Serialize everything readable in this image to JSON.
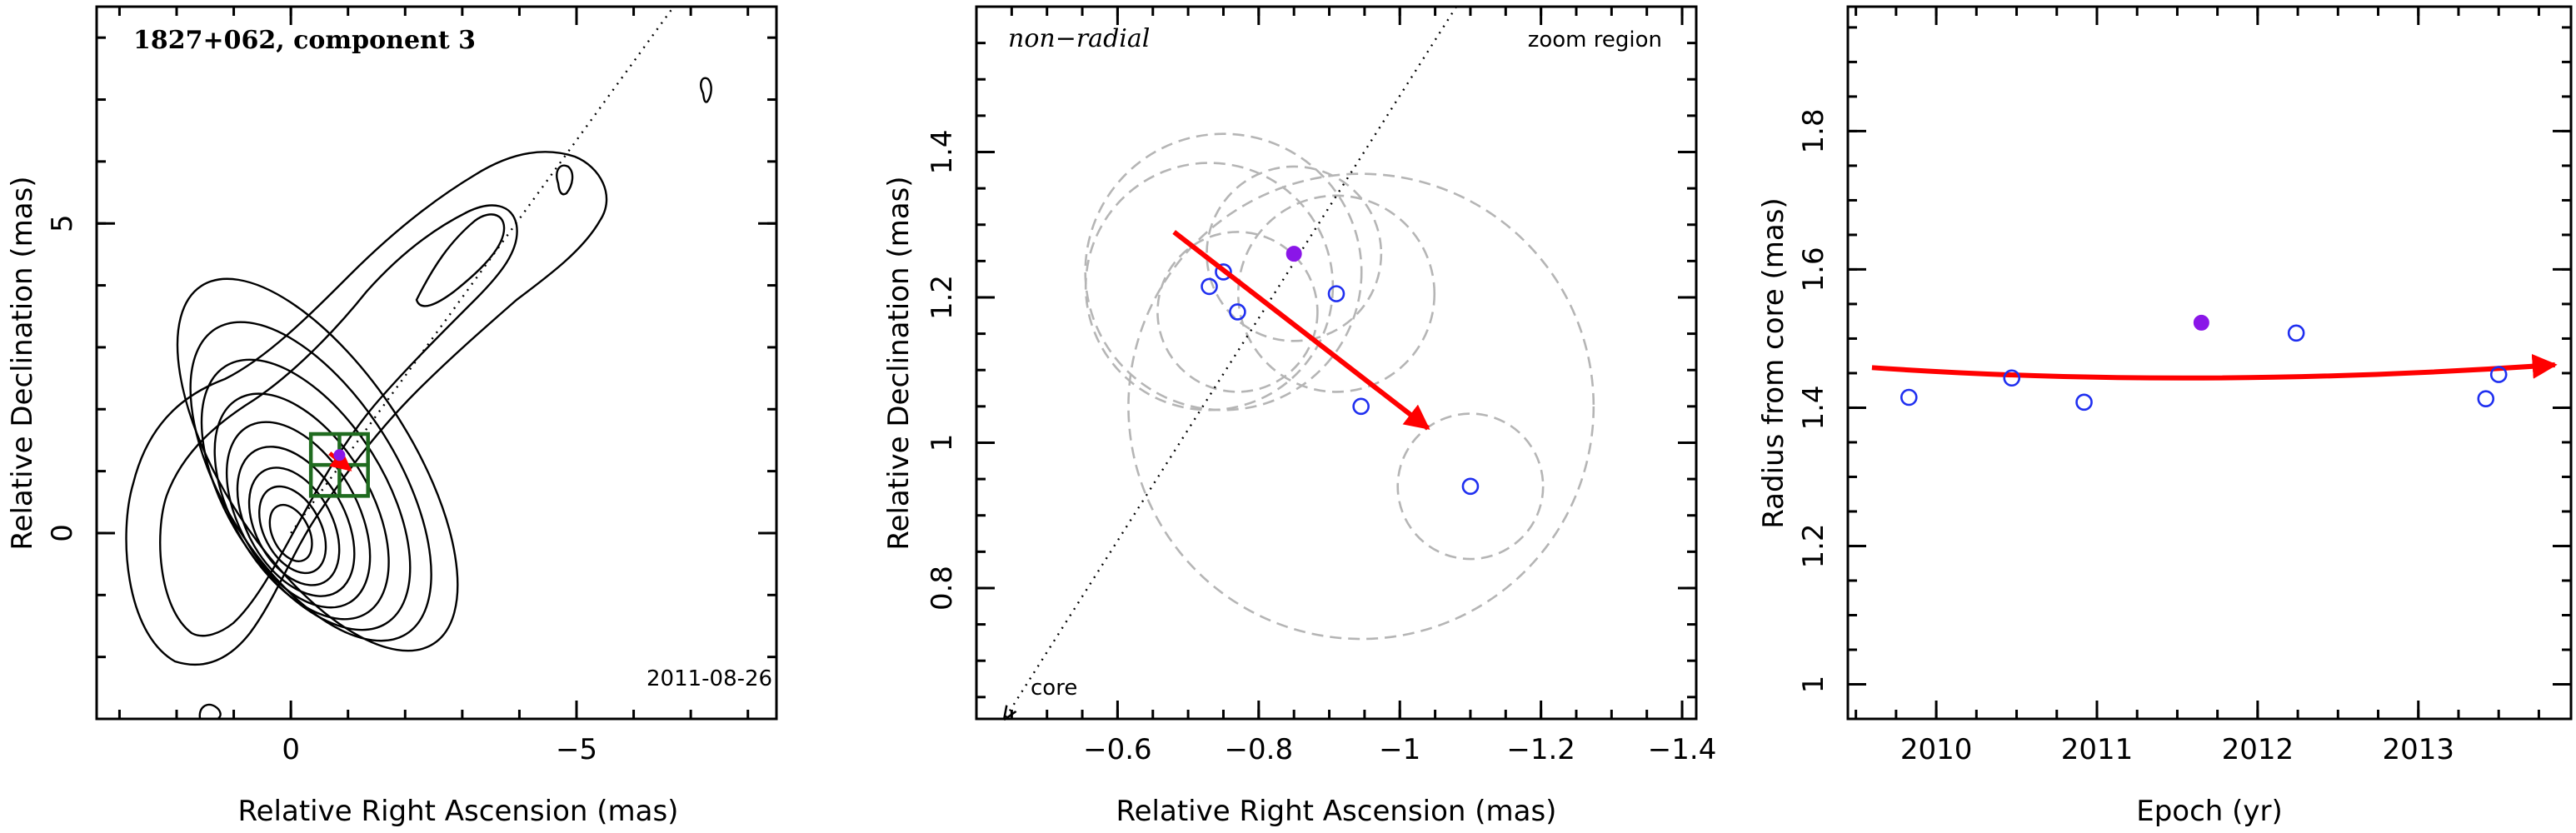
{
  "chart_data": [
    {
      "type": "contour",
      "title": "1827+062, component 3",
      "annotation": "2011-08-26",
      "xlabel": "Relative Right Ascension (mas)",
      "ylabel": "Relative Declination (mas)",
      "xlim": [
        3.4,
        -8.5
      ],
      "ylim": [
        -3.0,
        8.5
      ],
      "xticks": [
        0,
        -5
      ],
      "xtick_labels": [
        "0",
        "−5"
      ],
      "yticks": [
        0,
        5
      ],
      "ytick_labels": [
        "0",
        "5"
      ],
      "core": [
        0,
        0
      ],
      "jet_direction_line": {
        "from": [
          0,
          0
        ],
        "to": [
          -6.7,
          8.5
        ],
        "style": "dotted"
      },
      "component_marker": {
        "ra": -0.85,
        "dec": 1.26,
        "color": "#8a16e8"
      },
      "motion_vector": {
        "from": [
          -0.68,
          1.29
        ],
        "to": [
          -1.04,
          1.02
        ],
        "color": "#ff0000"
      },
      "zoom_box": {
        "ra_range": [
          -0.35,
          -1.35
        ],
        "dec_range": [
          0.6,
          1.6
        ],
        "color": "#1f6b1f"
      }
    },
    {
      "type": "scatter",
      "title": "non−radial",
      "annotations": [
        "zoom region",
        "core"
      ],
      "xlabel": "Relative Right Ascension (mas)",
      "ylabel": "Relative Declination (mas)",
      "xlim": [
        -0.4,
        -1.42
      ],
      "ylim": [
        0.62,
        1.6
      ],
      "xticks": [
        -0.6,
        -0.8,
        -1,
        -1.2,
        -1.4
      ],
      "xtick_labels": [
        "−0.6",
        "−0.8",
        "−1",
        "−1.2",
        "−1.4"
      ],
      "yticks": [
        0.8,
        1,
        1.2,
        1.4
      ],
      "ytick_labels": [
        "0.8",
        "1",
        "1.2",
        "1.4"
      ],
      "points": [
        {
          "ra": -0.73,
          "dec": 1.215,
          "r": 0.17
        },
        {
          "ra": -0.75,
          "dec": 1.235,
          "r": 0.19
        },
        {
          "ra": -0.77,
          "dec": 1.18,
          "r": 0.11
        },
        {
          "ra": -0.85,
          "dec": 1.26,
          "r": 0.12,
          "filled": true
        },
        {
          "ra": -0.91,
          "dec": 1.205,
          "r": 0.135
        },
        {
          "ra": -0.945,
          "dec": 1.05,
          "r": 0.32
        },
        {
          "ra": -1.1,
          "dec": 0.94,
          "r": 0.1
        }
      ],
      "motion_vector": {
        "from": [
          -0.68,
          1.29
        ],
        "to": [
          -1.04,
          1.02
        ],
        "color": "#ff0000"
      },
      "line_to_core": {
        "from": [
          -0.44,
          0.62
        ],
        "to": [
          -1.08,
          1.6
        ],
        "style": "dotted"
      }
    },
    {
      "type": "scatter",
      "xlabel": "Epoch (yr)",
      "ylabel": "Radius from core (mas)",
      "xlim": [
        2009.45,
        2013.95
      ],
      "ylim": [
        0.95,
        1.98
      ],
      "xticks": [
        2010,
        2011,
        2012,
        2013
      ],
      "xtick_labels": [
        "2010",
        "2011",
        "2012",
        "2013"
      ],
      "yticks": [
        1,
        1.2,
        1.4,
        1.6,
        1.8
      ],
      "ytick_labels": [
        "1",
        "1.2",
        "1.4",
        "1.6",
        "1.8"
      ],
      "x": [
        2009.83,
        2010.47,
        2010.92,
        2011.65,
        2012.24,
        2013.42,
        2013.5
      ],
      "y": [
        1.415,
        1.443,
        1.408,
        1.523,
        1.508,
        1.413,
        1.448
      ],
      "filled_index": 3,
      "fit_curve": {
        "x": [
          2009.6,
          2011.6,
          2013.85
        ],
        "y": [
          1.458,
          1.443,
          1.462
        ],
        "color": "#ff0000"
      }
    }
  ],
  "colors": {
    "open_point": "#1f2ff0",
    "filled_point": "#8a16e8",
    "vector": "#ff0000",
    "zoom_box": "#1f6b1f",
    "circles": "#b5b5b5"
  }
}
